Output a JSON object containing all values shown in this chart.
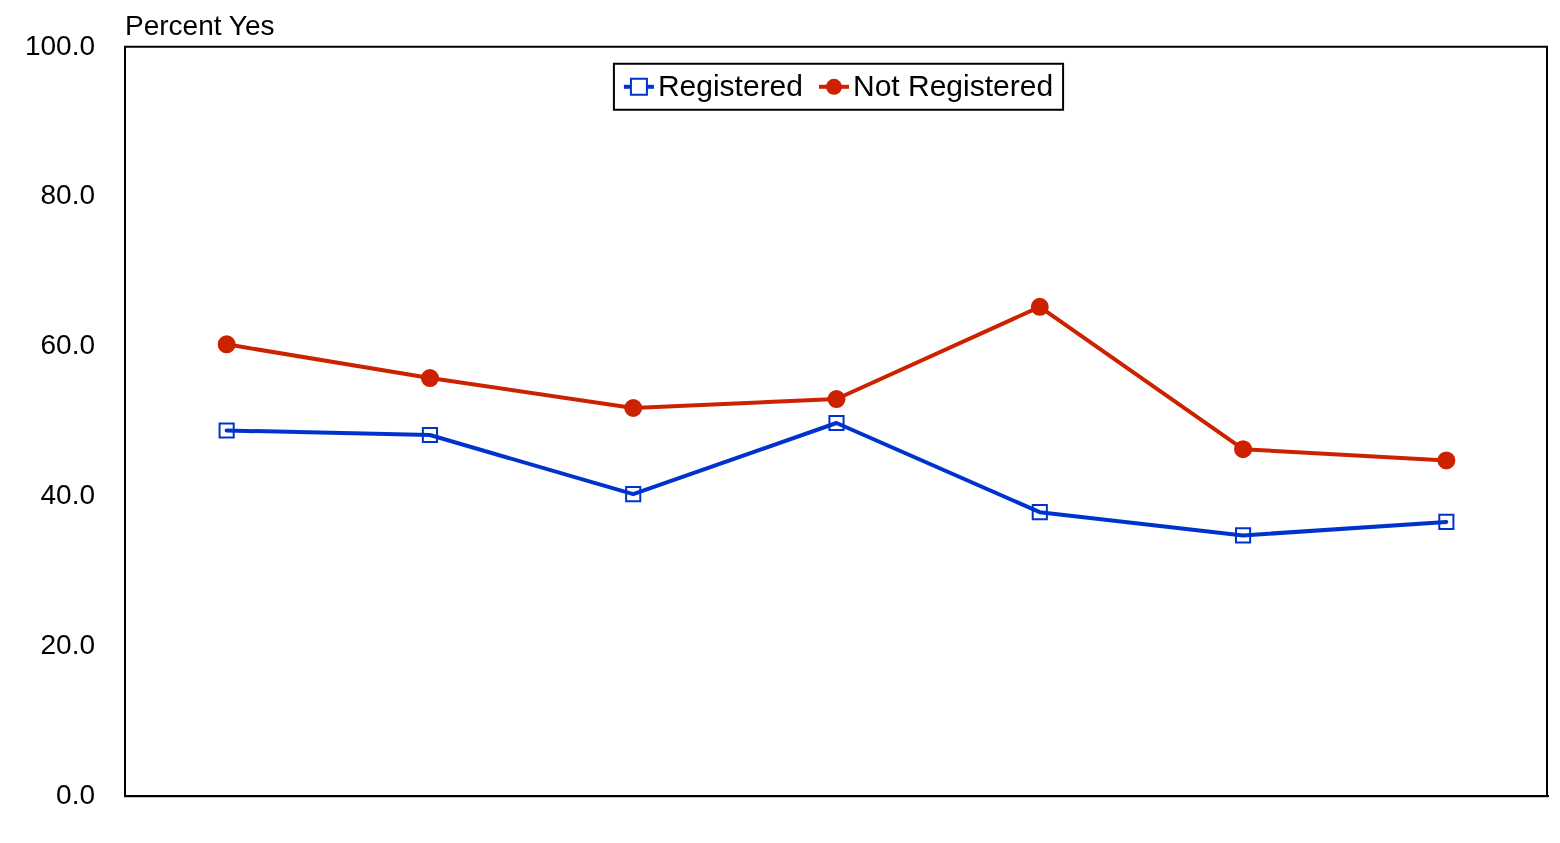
{
  "chart_data": {
    "type": "line",
    "ylabel": "Percent Yes",
    "categories": [
      null,
      null,
      null,
      null,
      null,
      null,
      null
    ],
    "series": [
      {
        "name": "Registered",
        "color": "#0033cc",
        "marker": "square",
        "values": [
          48.8,
          48.2,
          40.3,
          49.8,
          37.9,
          34.8,
          36.6
        ]
      },
      {
        "name": "Not Registered",
        "color": "#cc2200",
        "marker": "circle",
        "values": [
          60.3,
          55.8,
          51.8,
          53.0,
          65.3,
          46.3,
          44.8
        ]
      }
    ],
    "ylim": [
      0,
      100
    ],
    "yticks": [
      {
        "value": 0,
        "label": "0.0"
      },
      {
        "value": 20,
        "label": "20.0"
      },
      {
        "value": 40,
        "label": "40.0"
      },
      {
        "value": 60,
        "label": "60.0"
      },
      {
        "value": 80,
        "label": "80.0"
      },
      {
        "value": 100,
        "label": "100.0"
      }
    ],
    "grid": false,
    "legend": "top",
    "tick_labels": "y",
    "line_style": "solid"
  }
}
